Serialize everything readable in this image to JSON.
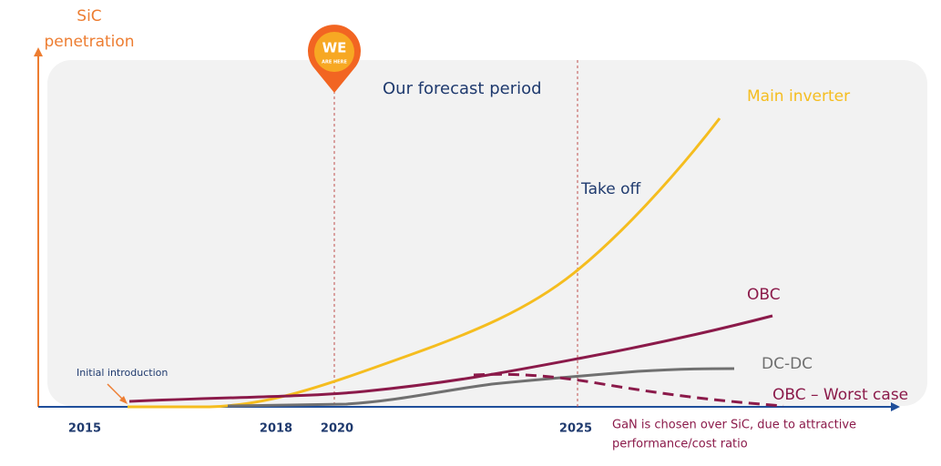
{
  "y_axis_title": {
    "line1": "SiC",
    "line2": "penetration"
  },
  "marker": {
    "line1": "WE",
    "line2": "ARE HERE"
  },
  "forecast_label": "Our forecast period",
  "x_labels": [
    2015,
    2018,
    2020,
    2025
  ],
  "curves": {
    "main_inverter": "Main inverter",
    "obc": "OBC",
    "dc_dc": "DC-DC",
    "obc_worst": "OBC – Worst case"
  },
  "annotations": {
    "take_off": "Take off",
    "initial": "Initial introduction",
    "gan_note_1": "GaN is chosen over SiC, due to attractive",
    "gan_note_2": "performance/cost ratio"
  }
}
